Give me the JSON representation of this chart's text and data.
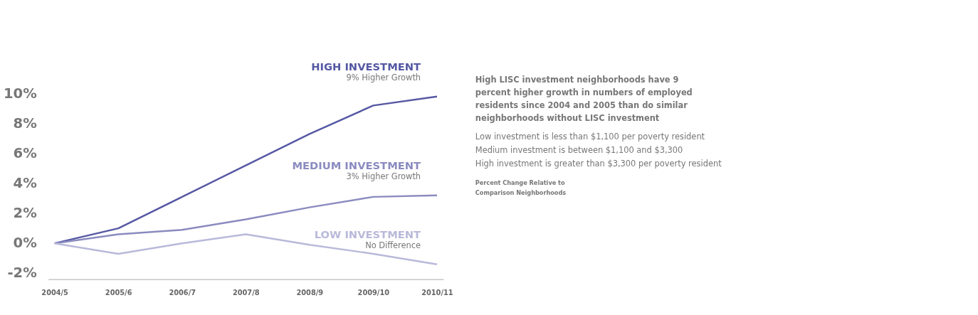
{
  "chart_data": {
    "type": "line",
    "categories": [
      "2004/5",
      "2005/6",
      "2006/7",
      "2007/8",
      "2008/9",
      "2009/10",
      "2010/11"
    ],
    "series": [
      {
        "name": "HIGH INVESTMENT",
        "color": "#5558a3",
        "values": [
          0,
          1.0,
          3.1,
          5.2,
          7.3,
          9.2,
          9.8
        ]
      },
      {
        "name": "MEDIUM INVESTMENT",
        "color": "#8a8bbf",
        "values": [
          0,
          0.6,
          0.9,
          1.6,
          2.4,
          3.1,
          3.2
        ]
      },
      {
        "name": "LOW INVESTMENT",
        "color": "#b9b9da",
        "values": [
          0,
          -0.7,
          0.0,
          0.6,
          -0.1,
          -0.7,
          -1.4
        ]
      }
    ],
    "ylim": [
      -2.4,
      10
    ],
    "yticks": [
      {
        "value": -2,
        "label": "-2%"
      },
      {
        "value": 0,
        "label": "0%"
      },
      {
        "value": 2,
        "label": "2%"
      },
      {
        "value": 4,
        "label": "4%"
      },
      {
        "value": 6,
        "label": "6%"
      },
      {
        "value": 8,
        "label": "8%"
      },
      {
        "value": 10,
        "label": "10%"
      }
    ],
    "grid": false,
    "legend": false,
    "marker": "none",
    "line_style": "solid",
    "annotations": [
      {
        "text": "9% Higher Growth",
        "x": "2010/11",
        "y": 9.8
      },
      {
        "text": "3% Higher Growth",
        "x": "2010/11",
        "y": 3.2
      },
      {
        "text": "No Difference",
        "x": "2010/11",
        "y": -1.4
      },
      "High LISC investment neighborhoods have 9",
      "percent higher growth in numbers of employed",
      "residents since 2004 and 2005 than do similar",
      "neighborhoods without LISC investment",
      "Low investment is less than $1,100 per poverty resident",
      "Medium investment is between $1,100 and $3,300",
      "High investment is greater than $3,300 per poverty resident",
      "Percent Change Relative to",
      "Comparison Neighborhoods"
    ]
  }
}
